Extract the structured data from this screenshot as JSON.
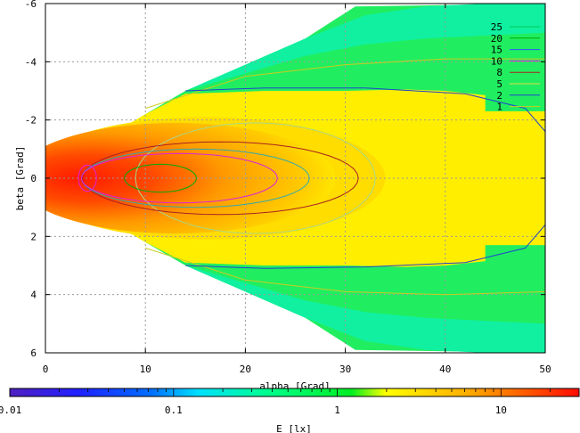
{
  "chart_data": {
    "type": "heatmap",
    "xlabel": "alpha [Grad]",
    "ylabel": "beta [Grad]",
    "colorbar_label": "E [lx]",
    "xlim": [
      0,
      50
    ],
    "ylim": [
      -6,
      6
    ],
    "y_reversed": true,
    "x_ticks": [
      "0",
      "10",
      "20",
      "30",
      "40",
      "50"
    ],
    "y_ticks": [
      "-6",
      "-4",
      "-2",
      "0",
      "2",
      "4",
      "6"
    ],
    "colorbar_scale": "log",
    "colorbar_range": [
      0.01,
      30
    ],
    "colorbar_ticks": [
      "0.01",
      "0.1",
      "1",
      "10"
    ],
    "grid": true,
    "legend_position": "top-right",
    "contour_levels": [
      {
        "level": "25",
        "color": "#00cc55"
      },
      {
        "level": "20",
        "color": "#00aa00"
      },
      {
        "level": "15",
        "color": "#3355ff"
      },
      {
        "level": "10",
        "color": "#dd22dd"
      },
      {
        "level": "8",
        "color": "#aa2222"
      },
      {
        "level": "5",
        "color": "#dddd44"
      },
      {
        "level": "2",
        "color": "#2244cc"
      },
      {
        "level": "1",
        "color": "#cccc22"
      }
    ]
  }
}
